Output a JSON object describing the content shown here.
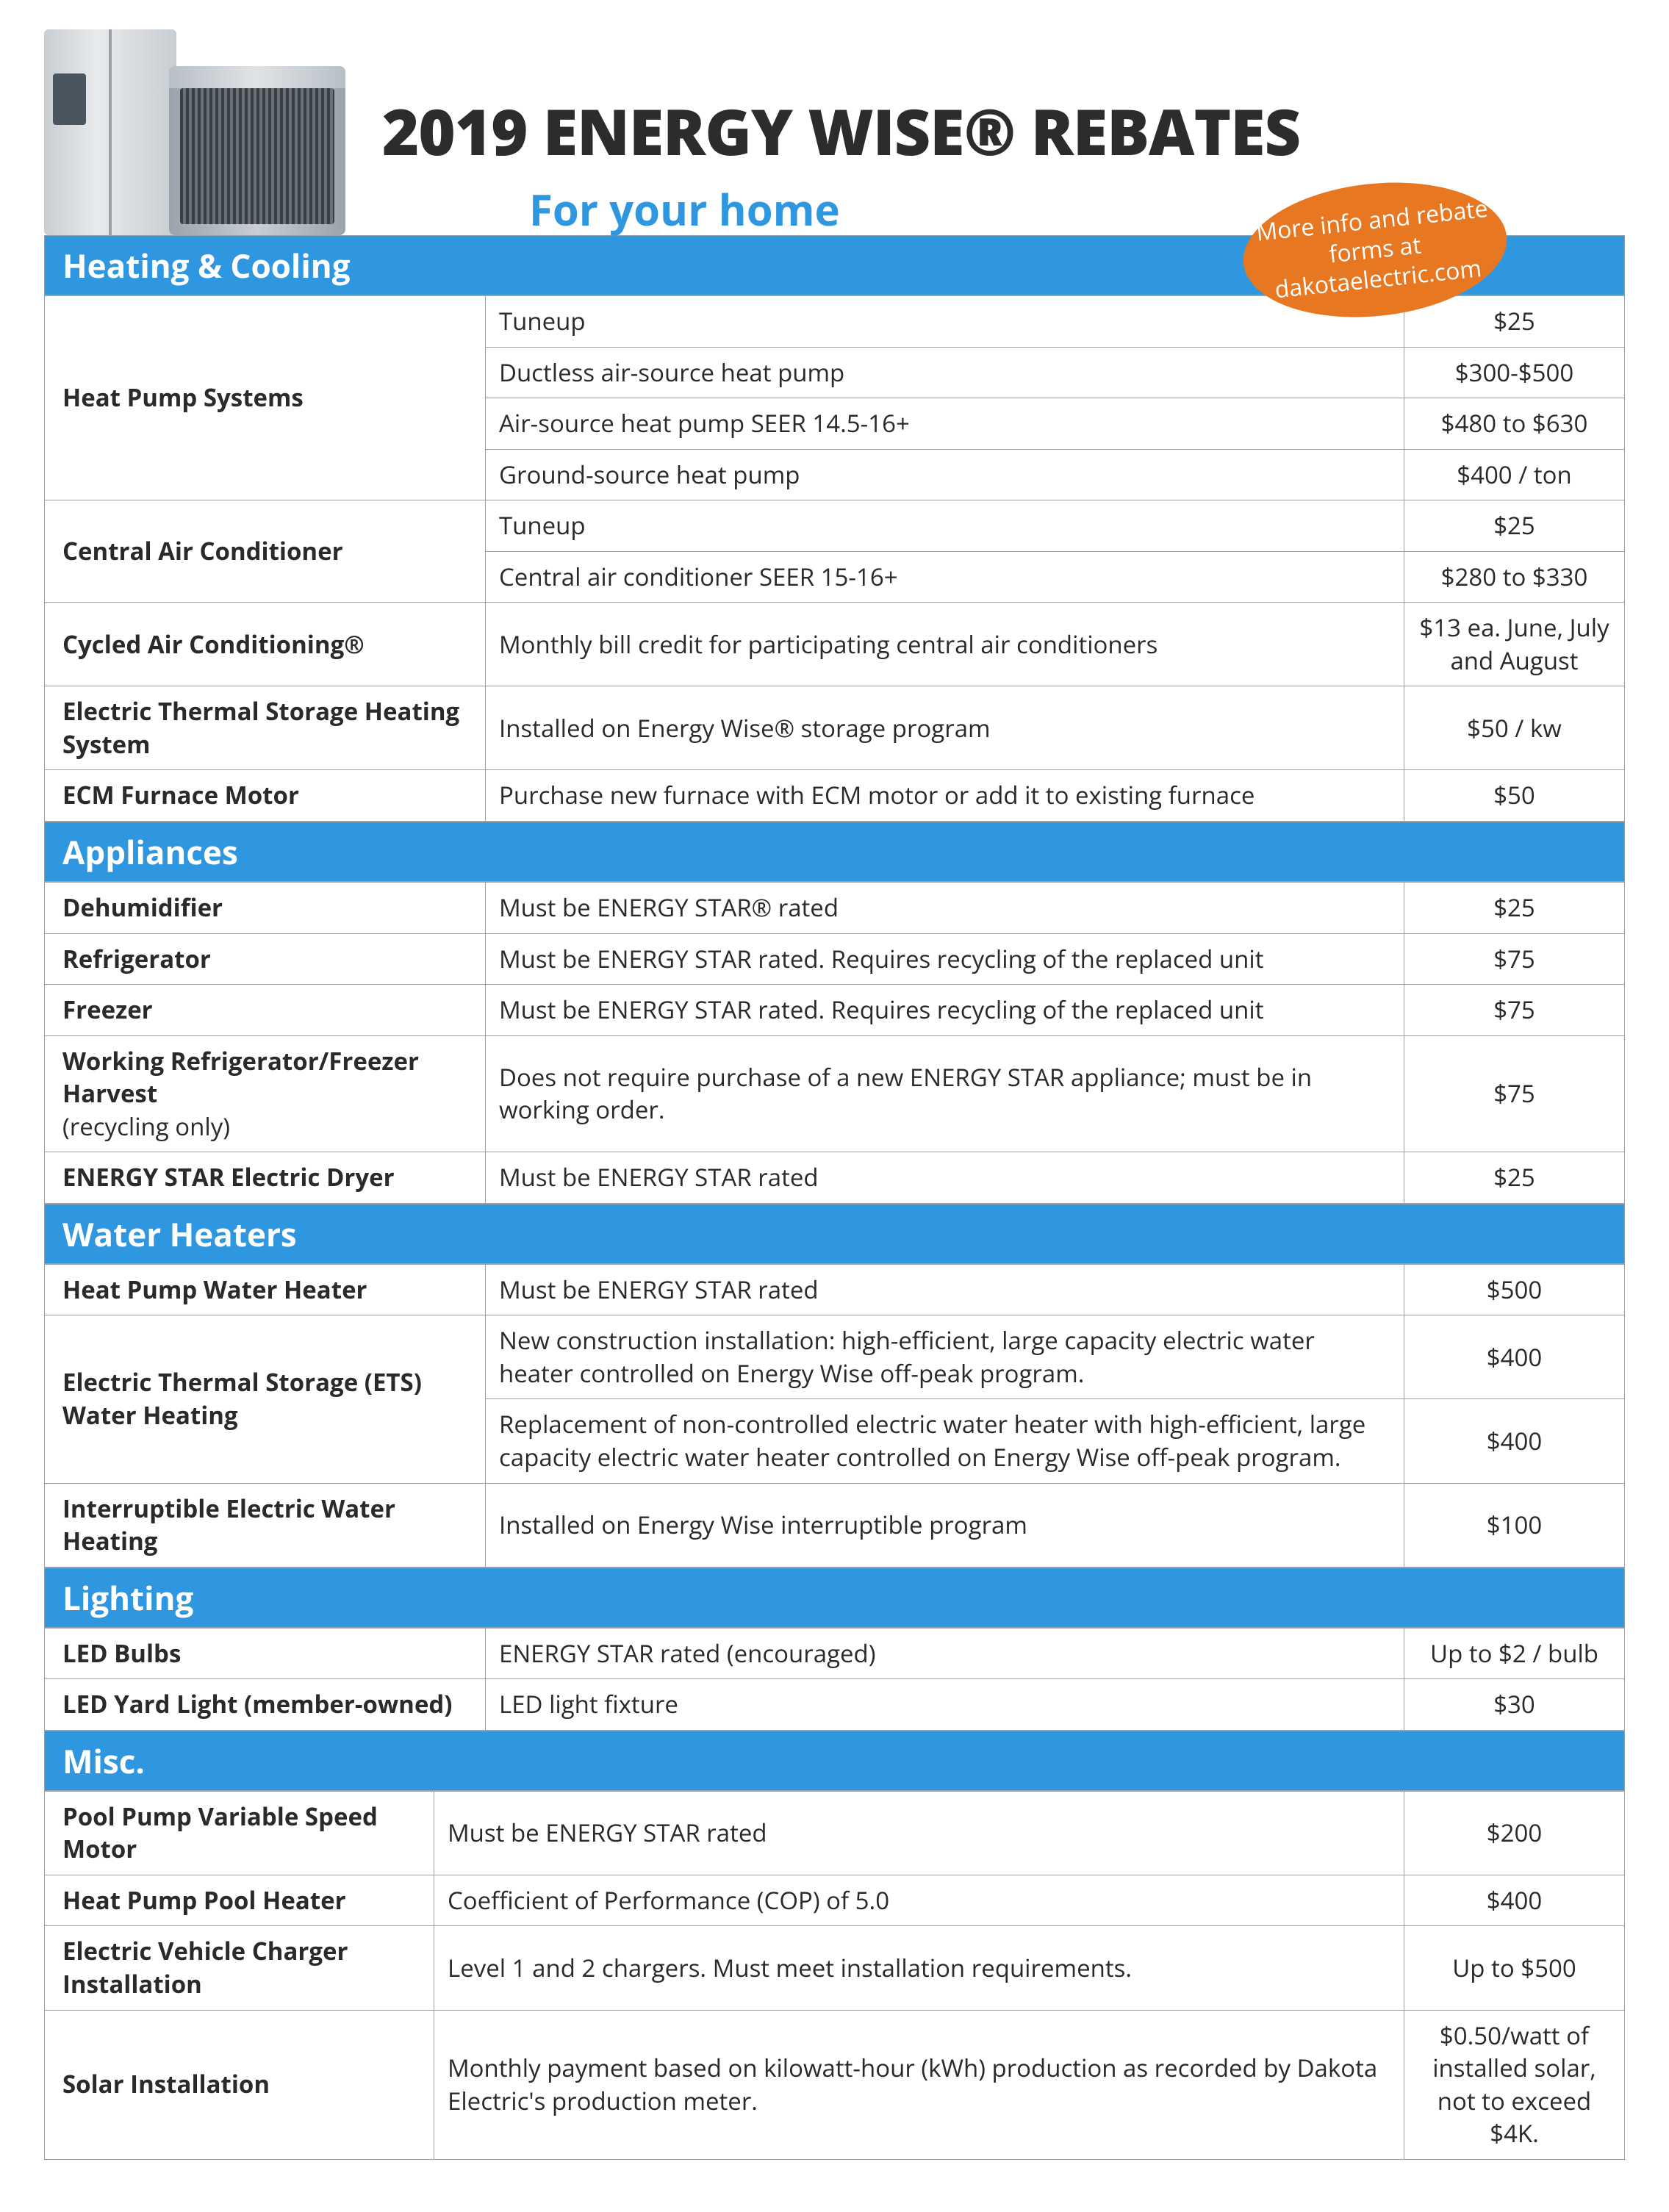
{
  "title": "2019 ENERGY WISE® REBATES",
  "subtitle": "For your home",
  "badge": "More info and rebate forms at dakotaelectric.com",
  "colors": {
    "section_header_bg": "#2f97e0",
    "section_header_fg": "#ffffff",
    "badge_bg": "#e87722",
    "border": "#9aa0a6",
    "title_color": "#2c2c2c",
    "subtitle_color": "#2f97e0"
  },
  "sections": [
    {
      "title": "Heating & Cooling",
      "label_width": "600px",
      "rows": [
        {
          "label": "Heat Pump Systems",
          "rowspan": 4,
          "items": [
            {
              "desc": "Tuneup",
              "amt": "$25"
            },
            {
              "desc": "Ductless air-source heat pump",
              "amt": "$300-$500"
            },
            {
              "desc": "Air-source heat pump SEER 14.5-16+",
              "amt": "$480 to $630"
            },
            {
              "desc": "Ground-source heat pump",
              "amt": "$400 / ton"
            }
          ]
        },
        {
          "label": "Central Air Conditioner",
          "rowspan": 2,
          "items": [
            {
              "desc": "Tuneup",
              "amt": "$25"
            },
            {
              "desc": "Central air conditioner SEER 15-16+",
              "amt": "$280 to $330"
            }
          ]
        },
        {
          "label": "Cycled Air Conditioning®",
          "rowspan": 1,
          "items": [
            {
              "desc": "Monthly bill credit for participating central air conditioners",
              "amt": "$13 ea. June, July and August"
            }
          ]
        },
        {
          "label": "Electric Thermal Storage Heating System",
          "rowspan": 1,
          "items": [
            {
              "desc": "Installed on Energy Wise® storage program",
              "amt": "$50 / kw"
            }
          ]
        },
        {
          "label": "ECM Furnace Motor",
          "rowspan": 1,
          "items": [
            {
              "desc": "Purchase new furnace with ECM motor or add it to existing furnace",
              "amt": "$50"
            }
          ]
        }
      ]
    },
    {
      "title": "Appliances",
      "label_width": "600px",
      "rows": [
        {
          "label": "Dehumidifier",
          "rowspan": 1,
          "items": [
            {
              "desc": "Must be ENERGY STAR® rated",
              "amt": "$25"
            }
          ]
        },
        {
          "label": "Refrigerator",
          "rowspan": 1,
          "items": [
            {
              "desc": "Must be ENERGY STAR rated. Requires recycling of the replaced unit",
              "amt": "$75"
            }
          ]
        },
        {
          "label": "Freezer",
          "rowspan": 1,
          "items": [
            {
              "desc": "Must be ENERGY STAR rated. Requires recycling of the replaced unit",
              "amt": "$75"
            }
          ]
        },
        {
          "label": "Working Refrigerator/Freezer Harvest",
          "sublabel": "(recycling only)",
          "rowspan": 1,
          "items": [
            {
              "desc": "Does not require purchase of a new ENERGY STAR appliance; must be in working order.",
              "amt": "$75"
            }
          ]
        },
        {
          "label": "ENERGY STAR Electric Dryer",
          "rowspan": 1,
          "items": [
            {
              "desc": "Must be ENERGY STAR rated",
              "amt": "$25"
            }
          ]
        }
      ]
    },
    {
      "title": "Water Heaters",
      "label_width": "600px",
      "rows": [
        {
          "label": "Heat Pump Water Heater",
          "rowspan": 1,
          "items": [
            {
              "desc": "Must be ENERGY STAR rated",
              "amt": "$500"
            }
          ]
        },
        {
          "label": "Electric Thermal Storage (ETS) Water Heating",
          "rowspan": 2,
          "items": [
            {
              "desc": "New construction installation: high-efficient, large capacity electric water heater controlled on Energy Wise off-peak program.",
              "amt": "$400"
            },
            {
              "desc": "Replacement of non-controlled electric water heater with high-efficient, large capacity electric water heater controlled on Energy Wise off-peak program.",
              "amt": "$400"
            }
          ]
        },
        {
          "label": "Interruptible Electric Water Heating",
          "rowspan": 1,
          "items": [
            {
              "desc": "Installed on Energy Wise interruptible program",
              "amt": "$100"
            }
          ]
        }
      ]
    },
    {
      "title": "Lighting",
      "label_width": "600px",
      "rows": [
        {
          "label": "LED Bulbs",
          "rowspan": 1,
          "items": [
            {
              "desc": "ENERGY STAR rated (encouraged)",
              "amt": "Up to $2 / bulb"
            }
          ]
        },
        {
          "label": "LED Yard Light (member-owned)",
          "rowspan": 1,
          "items": [
            {
              "desc": "LED light fixture",
              "amt": "$30"
            }
          ]
        }
      ]
    },
    {
      "title": "Misc.",
      "label_width": "530px",
      "rows": [
        {
          "label": "Pool Pump Variable Speed Motor",
          "rowspan": 1,
          "items": [
            {
              "desc": "Must be ENERGY STAR rated",
              "amt": "$200"
            }
          ]
        },
        {
          "label": "Heat Pump Pool Heater",
          "rowspan": 1,
          "items": [
            {
              "desc": "Coefficient of Performance (COP) of 5.0",
              "amt": "$400"
            }
          ]
        },
        {
          "label": "Electric Vehicle Charger Installation",
          "rowspan": 1,
          "items": [
            {
              "desc": "Level 1 and 2 chargers. Must meet installation requirements.",
              "amt": "Up to $500"
            }
          ]
        },
        {
          "label": "Solar Installation",
          "rowspan": 1,
          "items": [
            {
              "desc": "Monthly payment based on kilowatt-hour (kWh) production as recorded by Dakota Electric's production meter.",
              "amt": "$0.50/watt of installed solar, not to exceed $4K."
            }
          ]
        }
      ]
    }
  ]
}
